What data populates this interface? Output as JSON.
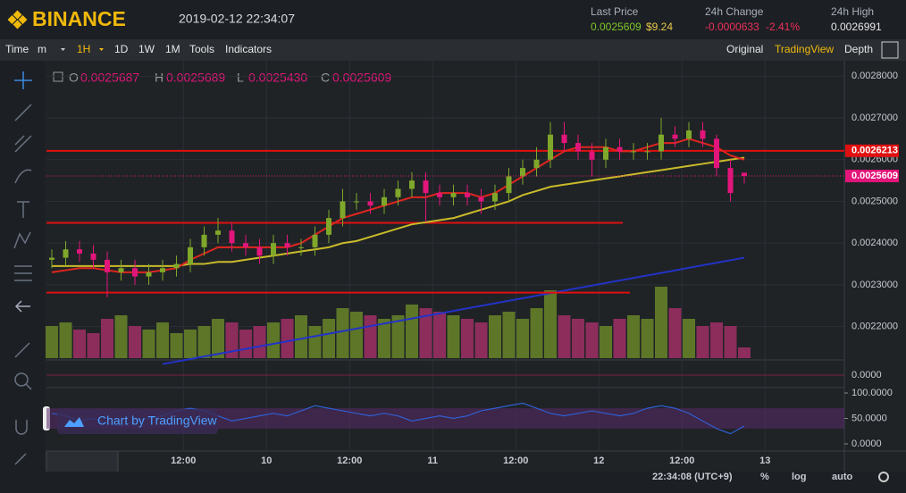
{
  "header": {
    "logo": "BINANCE",
    "datetime": "2019-02-12 22:34:07",
    "last_price_label": "Last Price",
    "last_price": "0.0025609",
    "last_price_usd": "$9.24",
    "change_label": "24h Change",
    "change": "-0.0000633",
    "change_pct": "-2.41%",
    "high_label": "24h High",
    "high": "0.0026991"
  },
  "toolbar": {
    "left": [
      "Time",
      "m",
      "1H",
      "1D",
      "1W",
      "1M",
      "Tools",
      "Indicators"
    ],
    "right": [
      "Original",
      "TradingView",
      "Depth"
    ]
  },
  "legend": {
    "o_label": "O",
    "o": "0.0025687",
    "h_label": "H",
    "h": "0.0025689",
    "l_label": "L",
    "l": "0.0025430",
    "c_label": "C",
    "c": "0.0025609"
  },
  "watermark": "Chart by TradingView",
  "footer": {
    "time": "22:34:08 (UTC+9)",
    "percent": "%",
    "log": "log",
    "auto": "auto"
  },
  "chart_data": {
    "type": "candlestick",
    "open": [
      0.00236,
      0.002365,
      0.002385,
      0.002375,
      0.00236,
      0.00233,
      0.00234,
      0.00232,
      0.00233,
      0.00234,
      0.00235,
      0.00239,
      0.00242,
      0.00243,
      0.0024,
      0.00239,
      0.00237,
      0.0024,
      0.00239,
      0.00239,
      0.00242,
      0.00246,
      0.0025,
      0.0025,
      0.00249,
      0.00251,
      0.00253,
      0.00255,
      0.00252,
      0.00251,
      0.00252,
      0.00251,
      0.0025,
      0.00252,
      0.00256,
      0.00258,
      0.0026,
      0.00266,
      0.00264,
      0.00262,
      0.0026,
      0.00263,
      0.00262,
      0.00262,
      0.00262,
      0.00266,
      0.00265,
      0.00267,
      0.00265,
      0.00258,
      0.0025687
    ],
    "high": [
      0.002385,
      0.002405,
      0.002405,
      0.002395,
      0.00238,
      0.00236,
      0.00236,
      0.00235,
      0.00236,
      0.00237,
      0.00241,
      0.00244,
      0.00246,
      0.00245,
      0.00242,
      0.00241,
      0.00242,
      0.00242,
      0.00241,
      0.00244,
      0.00248,
      0.00253,
      0.00252,
      0.00252,
      0.00253,
      0.00255,
      0.00257,
      0.00257,
      0.00254,
      0.00254,
      0.00254,
      0.00253,
      0.00254,
      0.00258,
      0.0026,
      0.00263,
      0.00269,
      0.00269,
      0.00266,
      0.00264,
      0.00265,
      0.00265,
      0.00264,
      0.00264,
      0.0027,
      0.00268,
      0.00269,
      0.00269,
      0.00266,
      0.0026,
      0.0025689
    ],
    "low": [
      0.00234,
      0.002345,
      0.002355,
      0.00234,
      0.00227,
      0.00231,
      0.0023,
      0.0023,
      0.00231,
      0.00232,
      0.00233,
      0.00237,
      0.0024,
      0.00238,
      0.00237,
      0.00235,
      0.00235,
      0.00237,
      0.00237,
      0.00237,
      0.0024,
      0.00244,
      0.00248,
      0.00247,
      0.00247,
      0.00249,
      0.00251,
      0.00245,
      0.00249,
      0.00249,
      0.00249,
      0.00247,
      0.00248,
      0.0025,
      0.00254,
      0.00256,
      0.00258,
      0.00262,
      0.0026,
      0.00256,
      0.00258,
      0.0026,
      0.0026,
      0.0026,
      0.0026,
      0.00263,
      0.00263,
      0.00263,
      0.00256,
      0.0025,
      0.002543
    ],
    "close": [
      0.002365,
      0.002385,
      0.002375,
      0.00236,
      0.00233,
      0.00234,
      0.00232,
      0.00233,
      0.00234,
      0.00235,
      0.00239,
      0.00242,
      0.00243,
      0.0024,
      0.00239,
      0.00237,
      0.0024,
      0.00239,
      0.00239,
      0.00242,
      0.00246,
      0.0025,
      0.0025,
      0.00249,
      0.00251,
      0.00253,
      0.00255,
      0.00252,
      0.00251,
      0.00252,
      0.00251,
      0.0025,
      0.00252,
      0.00256,
      0.00258,
      0.0026,
      0.00266,
      0.00264,
      0.00262,
      0.0026,
      0.00263,
      0.00262,
      0.00262,
      0.00262,
      0.00266,
      0.00265,
      0.00267,
      0.00265,
      0.00258,
      0.00252,
      0.0025609
    ],
    "volume": [
      45,
      50,
      40,
      35,
      55,
      60,
      45,
      40,
      50,
      35,
      40,
      45,
      55,
      50,
      40,
      45,
      50,
      55,
      60,
      45,
      55,
      70,
      65,
      60,
      55,
      60,
      75,
      70,
      65,
      60,
      55,
      50,
      60,
      65,
      55,
      70,
      95,
      60,
      55,
      50,
      45,
      55,
      60,
      55,
      100,
      70,
      55,
      45,
      50,
      45,
      15
    ],
    "volume_lim": [
      0,
      100
    ],
    "ma_fast": [
      0.00233,
      0.002335,
      0.00234,
      0.00234,
      0.002335,
      0.00233,
      0.00233,
      0.00233,
      0.002335,
      0.00234,
      0.00236,
      0.002375,
      0.00239,
      0.00239,
      0.00239,
      0.00239,
      0.00239,
      0.00239,
      0.0024,
      0.00242,
      0.00244,
      0.00246,
      0.00247,
      0.00248,
      0.00249,
      0.0025,
      0.00251,
      0.00251,
      0.00252,
      0.00252,
      0.00252,
      0.00251,
      0.00252,
      0.00254,
      0.00256,
      0.00258,
      0.0026,
      0.00262,
      0.00263,
      0.00263,
      0.00263,
      0.00262,
      0.00262,
      0.00263,
      0.00264,
      0.00264,
      0.00265,
      0.00264,
      0.00263,
      0.00261,
      0.0026
    ],
    "ma_slow": [
      0.002345,
      0.002345,
      0.002345,
      0.002345,
      0.002345,
      0.002345,
      0.002345,
      0.002345,
      0.002345,
      0.002345,
      0.00235,
      0.00235,
      0.002355,
      0.002355,
      0.00236,
      0.002365,
      0.00237,
      0.002375,
      0.00238,
      0.002385,
      0.00239,
      0.0024,
      0.002405,
      0.002415,
      0.002425,
      0.002435,
      0.002445,
      0.00245,
      0.002455,
      0.00246,
      0.00247,
      0.00248,
      0.00249,
      0.0025,
      0.002515,
      0.002525,
      0.002535,
      0.00254,
      0.002545,
      0.00255,
      0.002555,
      0.00256,
      0.002565,
      0.00257,
      0.002575,
      0.00258,
      0.002585,
      0.00259,
      0.002595,
      0.0026,
      0.002605
    ],
    "trendline": {
      "x": [
        8,
        50
      ],
      "values": [
        0.00211,
        0.002365
      ]
    },
    "hlines": [
      0.0026213,
      0.0024486,
      0.0022814
    ],
    "price_labels": [
      0.0026213,
      0.0025609
    ],
    "rsi": [
      60,
      55,
      45,
      50,
      40,
      35,
      45,
      50,
      55,
      65,
      70,
      65,
      55,
      45,
      50,
      55,
      60,
      55,
      65,
      75,
      70,
      65,
      60,
      55,
      60,
      55,
      45,
      50,
      55,
      50,
      55,
      65,
      70,
      75,
      80,
      70,
      60,
      55,
      60,
      65,
      60,
      55,
      60,
      70,
      75,
      70,
      60,
      45,
      30,
      20,
      35
    ],
    "rsi_lim": [
      0,
      100
    ],
    "rsi_ticks": [
      {
        "value": 100,
        "label": "100.0000"
      },
      {
        "value": 50,
        "label": "50.0000"
      },
      {
        "value": 0,
        "label": "0.0000"
      }
    ],
    "mid_tick": {
      "value": 0,
      "label": "0.0000"
    },
    "ylim": [
      0.00212,
      0.00282
    ],
    "yticks": [
      {
        "value": 0.0022,
        "label": "0.0022000"
      },
      {
        "value": 0.0023,
        "label": "0.0023000"
      },
      {
        "value": 0.0024,
        "label": "0.0024000"
      },
      {
        "value": 0.0025,
        "label": "0.0025000"
      },
      {
        "value": 0.0026,
        "label": "0.0026000"
      },
      {
        "value": 0.0027,
        "label": "0.0027000"
      },
      {
        "value": 0.0028,
        "label": "0.0028000"
      }
    ],
    "xticks": [
      {
        "value": 9.5,
        "label": "12:00"
      },
      {
        "value": 15.5,
        "label": "10"
      },
      {
        "value": 21.5,
        "label": "12:00"
      },
      {
        "value": 27.5,
        "label": "11"
      },
      {
        "value": 33.5,
        "label": "12:00"
      },
      {
        "value": 39.5,
        "label": "12"
      },
      {
        "value": 45.5,
        "label": "12:00"
      },
      {
        "value": 51.5,
        "label": "13"
      }
    ],
    "colors": {
      "up": "#7fa82a",
      "down": "#e2157a",
      "vol_up": "#5d7628",
      "vol_down": "#8c2d5c",
      "ma_fast": "#e0251f",
      "ma_slow": "#c9bb2a",
      "trend": "#2233c8",
      "hline": "#e01010",
      "rsi": "#2f5fd0"
    }
  }
}
